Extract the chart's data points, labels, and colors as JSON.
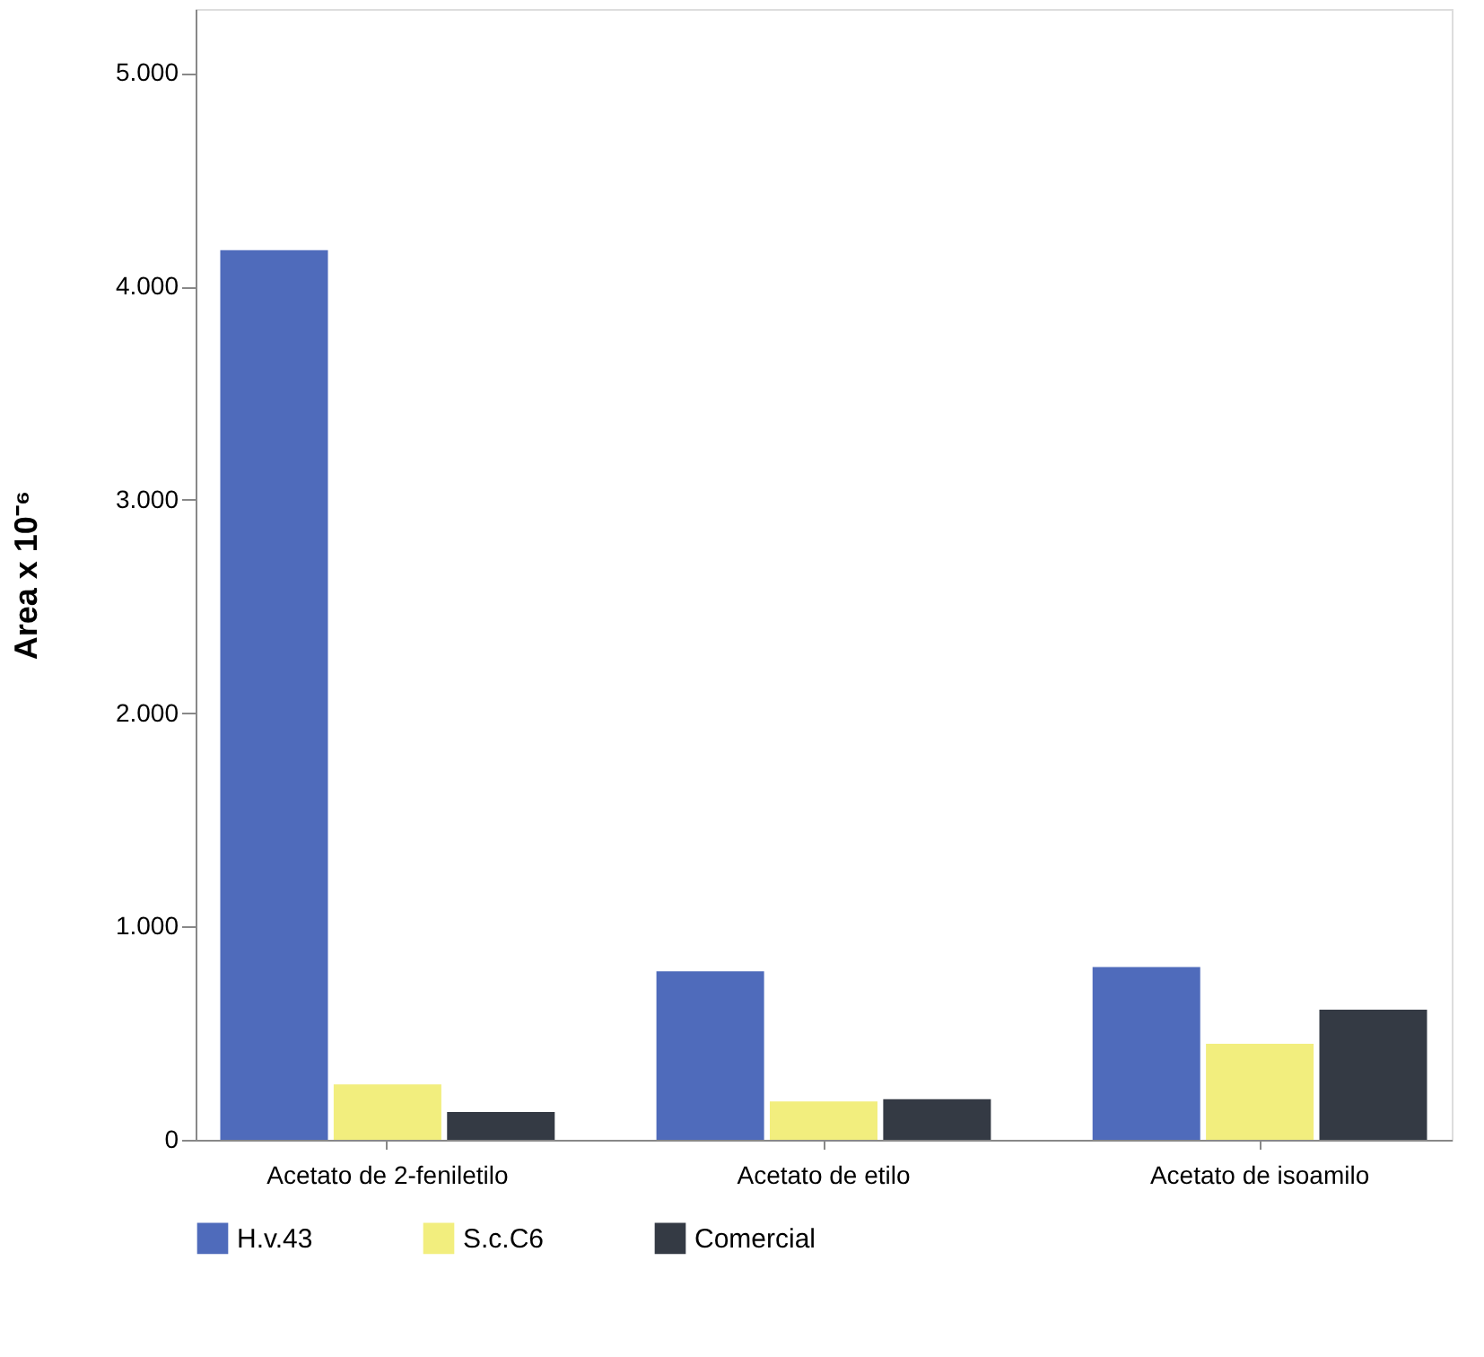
{
  "chart_data": {
    "type": "bar",
    "ylabel": "Area x 10⁻⁶",
    "categories": [
      "Acetato de 2-feniletilo",
      "Acetato de etilo",
      "Acetato de isoamilo"
    ],
    "series": [
      {
        "name": "H.v.43",
        "color": "#4f6bbb",
        "values": [
          4170,
          790,
          810
        ]
      },
      {
        "name": "S.c.C6",
        "color": "#f2ee7e",
        "values": [
          260,
          180,
          450
        ]
      },
      {
        "name": "Comercial",
        "color": "#343a44",
        "values": [
          130,
          190,
          610
        ]
      }
    ],
    "ylim": [
      0,
      5300
    ],
    "yticks": [
      {
        "value": 0,
        "label": "0"
      },
      {
        "value": 1000,
        "label": "1.000"
      },
      {
        "value": 2000,
        "label": "2.000"
      },
      {
        "value": 3000,
        "label": "3.000"
      },
      {
        "value": 4000,
        "label": "4.000"
      },
      {
        "value": 5000,
        "label": "5.000"
      }
    ],
    "grid": false,
    "legend": "bottom"
  }
}
